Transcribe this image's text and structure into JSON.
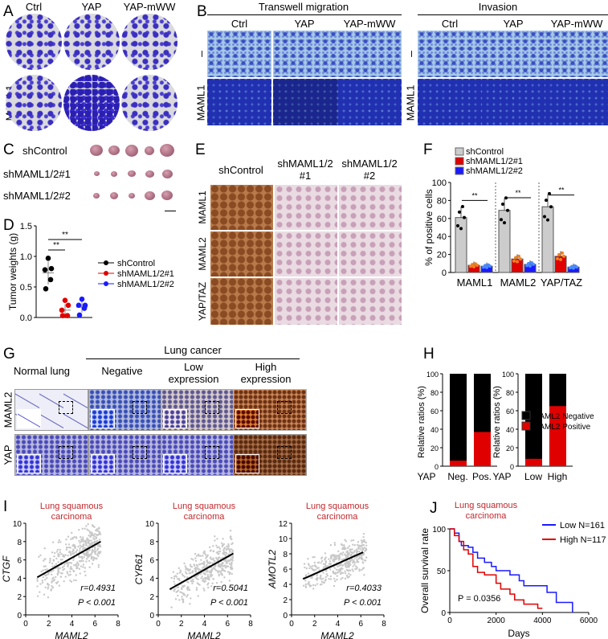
{
  "panel_labels": {
    "A": "A",
    "B": "B",
    "C": "C",
    "D": "D",
    "E": "E",
    "F": "F",
    "G": "G",
    "H": "H",
    "I": "I",
    "J": "J"
  },
  "A": {
    "columns": [
      "Ctrl",
      "YAP",
      "YAP-mWW"
    ],
    "rows": [
      "–",
      "MAML1"
    ]
  },
  "B": {
    "groups": [
      "Transwell migration",
      "Invasion"
    ],
    "columns": [
      "Ctrl",
      "YAP",
      "YAP-mWW"
    ],
    "rows": [
      "–",
      "MAML1"
    ]
  },
  "C": {
    "rows": [
      "shControl",
      "shMAML1/2#1",
      "shMAML1/2#2"
    ]
  },
  "E": {
    "columns": [
      "shControl",
      "shMAML1/2\n#1",
      "shMAML1/2\n#2"
    ],
    "col_line1": [
      "shControl",
      "shMAML1/2",
      "shMAML1/2"
    ],
    "col_line2": [
      "",
      "#1",
      "#2"
    ],
    "rows": [
      "MAML1",
      "MAML2",
      "YAP/TAZ"
    ]
  },
  "G": {
    "group": "Lung cancer",
    "columns_line1": [
      "Normal lung",
      "Negative",
      "Low",
      "High"
    ],
    "columns_line2": [
      "",
      "",
      "expression",
      "expression"
    ],
    "rows": [
      "MAML2",
      "YAP"
    ]
  },
  "chart_data": [
    {
      "id": "D",
      "type": "scatter",
      "ylabel": "Tumor weights (g)",
      "ylim": [
        0,
        1.5
      ],
      "yticks": [
        "0.0",
        "0.5",
        "1.0",
        "1.5"
      ],
      "series": [
        {
          "name": "shControl",
          "color": "#000000",
          "values": [
            0.97,
            0.8,
            0.78,
            0.62,
            0.47
          ],
          "mean": 0.73,
          "sd": 0.19
        },
        {
          "name": "shMAML1/2#1",
          "color": "#e00000",
          "values": [
            0.28,
            0.2,
            0.12,
            0.03,
            0.03
          ],
          "mean": 0.12,
          "sd": 0.1
        },
        {
          "name": "shMAML1/2#2",
          "color": "#1a1aff",
          "values": [
            0.3,
            0.2,
            0.2,
            0.15,
            0.04
          ],
          "mean": 0.17,
          "sd": 0.09
        }
      ],
      "significance": [
        "**",
        "**"
      ],
      "legend": "right"
    },
    {
      "id": "F",
      "type": "bar",
      "ylabel": "% of positive cells",
      "ylim": [
        0,
        100
      ],
      "yticks": [
        "0",
        "20",
        "40",
        "60",
        "80",
        "100"
      ],
      "categories": [
        "MAML1",
        "MAML2",
        "YAP/TAZ"
      ],
      "series": [
        {
          "name": "shControl",
          "color": "#cccccc",
          "values": [
            61,
            69,
            73
          ]
        },
        {
          "name": "shMAML1/2#1",
          "color": "#e00000",
          "values": [
            8,
            15,
            18
          ]
        },
        {
          "name": "shMAML1/2#2",
          "color": "#1a1aff",
          "values": [
            7,
            9,
            6
          ]
        }
      ],
      "significance": [
        "**",
        "**",
        "**"
      ],
      "legend": "top-left"
    },
    {
      "id": "H1",
      "type": "bar",
      "ylabel": "Relative ratios (%)",
      "ylim": [
        0,
        100
      ],
      "yticks": [
        "0",
        "20",
        "40",
        "60",
        "80",
        "100"
      ],
      "xprefix": "YAP",
      "categories": [
        "Neg.",
        "Pos."
      ],
      "series": [
        {
          "name": "MAML2 Positive",
          "color": "#e00000",
          "values": [
            6,
            37
          ]
        },
        {
          "name": "MAML2 Negative",
          "color": "#000000",
          "values": [
            94,
            63
          ]
        }
      ]
    },
    {
      "id": "H2",
      "type": "bar",
      "ylabel": "Relative ratios (%)",
      "ylim": [
        0,
        100
      ],
      "yticks": [
        "0",
        "20",
        "40",
        "60",
        "80",
        "100"
      ],
      "xprefix": "YAP",
      "categories": [
        "Low",
        "High"
      ],
      "series": [
        {
          "name": "MAML2 Positive",
          "color": "#e00000",
          "values": [
            8,
            65
          ]
        },
        {
          "name": "MAML2 Negative",
          "color": "#000000",
          "values": [
            92,
            35
          ]
        }
      ],
      "legend_items": [
        "MAML2 Negative",
        "MAML2 Positive"
      ],
      "legend": "right"
    },
    {
      "id": "I1",
      "type": "scatter",
      "title": "Lung squamous\ncarcinoma",
      "title_color": "#c0282c",
      "xlabel": "MAML2",
      "ylabel": "CTGF",
      "xlim": [
        0,
        8
      ],
      "ylim": [
        0,
        10
      ],
      "xticks": [
        "0",
        "2",
        "4",
        "6",
        "8"
      ],
      "yticks": [
        "0",
        "2",
        "4",
        "6",
        "8",
        "10"
      ],
      "fit": [
        [
          1,
          4.1
        ],
        [
          6.5,
          8.0
        ]
      ],
      "r": "r=0.4931",
      "p": "P < 0.001"
    },
    {
      "id": "I2",
      "type": "scatter",
      "title": "Lung squamous\ncarcinoma",
      "title_color": "#c0282c",
      "xlabel": "MAML2",
      "ylabel": "CYR61",
      "xlim": [
        0,
        8
      ],
      "ylim": [
        0,
        10
      ],
      "xticks": [
        "0",
        "2",
        "4",
        "6",
        "8"
      ],
      "yticks": [
        "0",
        "2",
        "4",
        "6",
        "8",
        "10"
      ],
      "fit": [
        [
          1,
          2.8
        ],
        [
          6.5,
          6.7
        ]
      ],
      "r": "r=0.5041",
      "p": "P < 0.001"
    },
    {
      "id": "I3",
      "type": "scatter",
      "title": "Lung squamous\ncarcinoma",
      "title_color": "#c0282c",
      "xlabel": "MAML2",
      "ylabel": "AMOTL2",
      "xlim": [
        0,
        8
      ],
      "ylim": [
        0,
        12
      ],
      "xticks": [
        "0",
        "2",
        "4",
        "6",
        "8"
      ],
      "yticks": [
        "0",
        "2",
        "4",
        "6",
        "8",
        "10",
        "12"
      ],
      "fit": [
        [
          1,
          4.7
        ],
        [
          6.2,
          8.2
        ]
      ],
      "r": "r=0.4033",
      "p": "P < 0.001"
    },
    {
      "id": "J",
      "type": "line",
      "title": "Lung squamous\ncarcinoma",
      "title_color": "#c0282c",
      "xlabel": "Days",
      "ylabel": "Overall survival rate",
      "xlim": [
        0,
        6000
      ],
      "ylim": [
        0,
        100
      ],
      "xticks": [
        "0",
        "2000",
        "4000",
        "6000"
      ],
      "yticks": [
        "0",
        "50",
        "100"
      ],
      "p": "P = 0.0356",
      "legend": "top-right",
      "series": [
        {
          "name": "Low N=161",
          "color": "#1a1aff",
          "points": [
            [
              0,
              100
            ],
            [
              200,
              95
            ],
            [
              400,
              85
            ],
            [
              500,
              80
            ],
            [
              800,
              78
            ],
            [
              1000,
              72
            ],
            [
              1200,
              65
            ],
            [
              1500,
              60
            ],
            [
              1800,
              55
            ],
            [
              2000,
              50
            ],
            [
              2400,
              50
            ],
            [
              2600,
              45
            ],
            [
              3000,
              38
            ],
            [
              3200,
              32
            ],
            [
              4000,
              32
            ],
            [
              4200,
              24
            ],
            [
              4600,
              24
            ],
            [
              4600,
              12
            ],
            [
              5300,
              12
            ],
            [
              5300,
              0
            ]
          ]
        },
        {
          "name": "High N=117",
          "color": "#e00000",
          "points": [
            [
              0,
              100
            ],
            [
              200,
              92
            ],
            [
              400,
              85
            ],
            [
              600,
              75
            ],
            [
              800,
              70
            ],
            [
              1000,
              55
            ],
            [
              1200,
              48
            ],
            [
              1500,
              45
            ],
            [
              1800,
              45
            ],
            [
              2000,
              35
            ],
            [
              2200,
              28
            ],
            [
              2600,
              22
            ],
            [
              2800,
              15
            ],
            [
              3200,
              10
            ],
            [
              3800,
              5
            ],
            [
              4000,
              5
            ]
          ]
        }
      ]
    }
  ]
}
